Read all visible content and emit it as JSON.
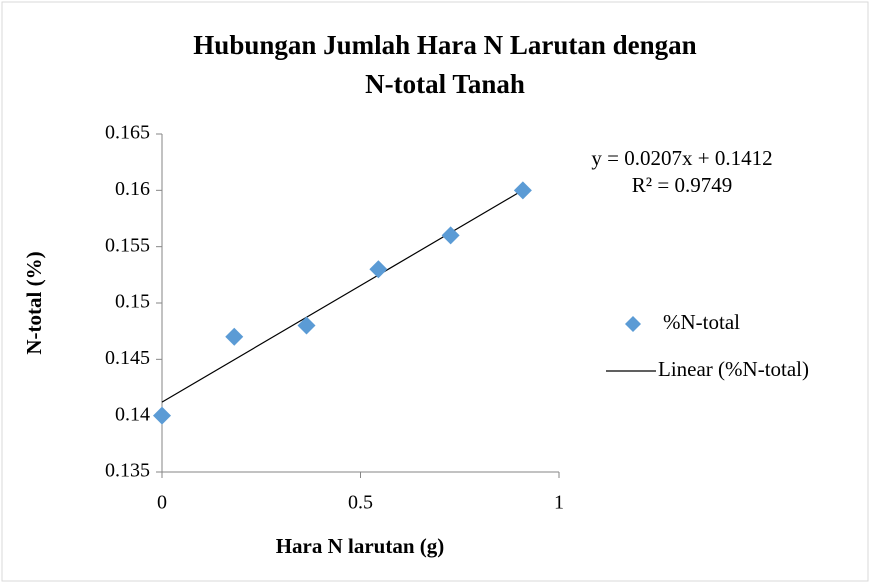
{
  "chart_data": {
    "type": "scatter",
    "title": "Hubungan Jumlah Hara N Larutan dengan",
    "subtitle": "N-total Tanah",
    "x_label": "Hara N larutan (g)",
    "y_label": "N-total (%)",
    "x": [
      0,
      0.182,
      0.364,
      0.545,
      0.727,
      0.909
    ],
    "series": [
      {
        "name": "%N-total",
        "color": "#5b9bd5",
        "values": [
          0.14,
          0.147,
          0.148,
          0.153,
          0.156,
          0.16
        ]
      }
    ],
    "trendline": {
      "name": "Linear (%N-total)",
      "color": "#000000",
      "slope": 0.0207,
      "intercept": 0.1412,
      "equation": "y = 0.0207x + 0.1412",
      "r2": "R² = 0.9749"
    },
    "xlim": [
      0,
      1
    ],
    "xticks": [
      0,
      0.5,
      1
    ],
    "ylim": [
      0.135,
      0.165
    ],
    "yticks": [
      0.135,
      0.14,
      0.145,
      0.15,
      0.155,
      0.16,
      0.165
    ],
    "grid": false,
    "legend": "right"
  }
}
